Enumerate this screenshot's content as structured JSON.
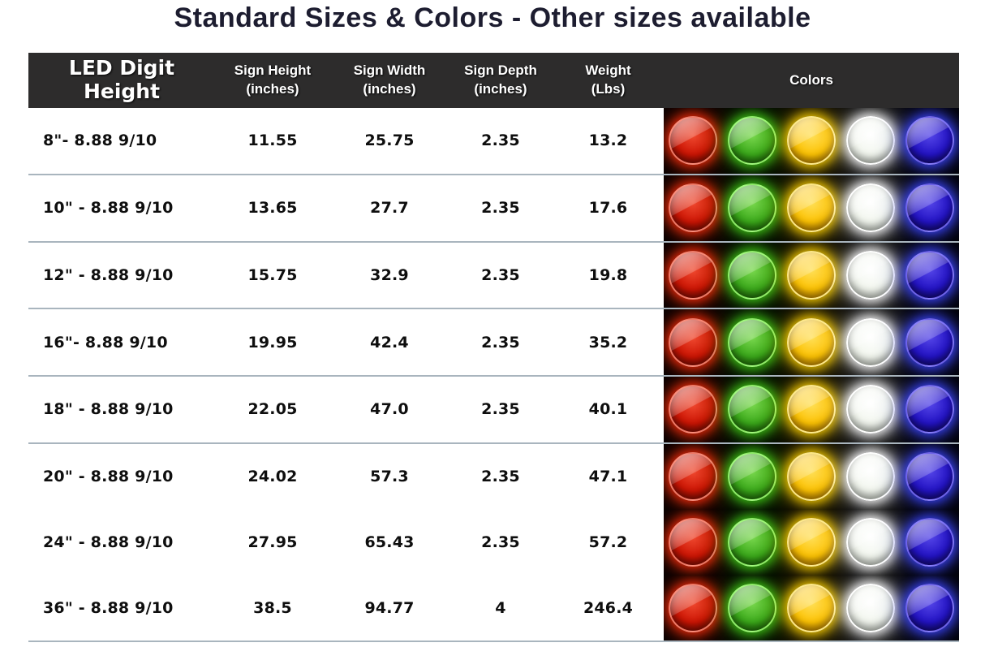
{
  "title": "Standard Sizes & Colors - Other sizes available",
  "table": {
    "headers": [
      {
        "line1": "LED Digit Height",
        "line2": ""
      },
      {
        "line1": "Sign Height",
        "line2": "(inches)"
      },
      {
        "line1": "Sign Width",
        "line2": "(inches)"
      },
      {
        "line1": "Sign Depth",
        "line2": "(inches)"
      },
      {
        "line1": "Weight",
        "line2": "(Lbs)"
      },
      {
        "line1": "Colors",
        "line2": ""
      }
    ],
    "rows": [
      {
        "digit_height": "8\"- 8.88 9/10",
        "sign_height": "11.55",
        "sign_width": "25.75",
        "sign_depth": "2.35",
        "weight": "13.2",
        "colors": [
          "red",
          "green",
          "yellow",
          "white",
          "blue"
        ]
      },
      {
        "digit_height": "10\" - 8.88 9/10",
        "sign_height": "13.65",
        "sign_width": "27.7",
        "sign_depth": "2.35",
        "weight": "17.6",
        "colors": [
          "red",
          "green",
          "yellow",
          "white",
          "blue"
        ]
      },
      {
        "digit_height": "12\" - 8.88 9/10",
        "sign_height": "15.75",
        "sign_width": "32.9",
        "sign_depth": "2.35",
        "weight": "19.8",
        "colors": [
          "red",
          "green",
          "yellow",
          "white",
          "blue"
        ]
      },
      {
        "digit_height": "16\"- 8.88 9/10",
        "sign_height": "19.95",
        "sign_width": "42.4",
        "sign_depth": "2.35",
        "weight": "35.2",
        "colors": [
          "red",
          "green",
          "yellow",
          "white",
          "blue"
        ]
      },
      {
        "digit_height": "18\" - 8.88 9/10",
        "sign_height": "22.05",
        "sign_width": "47.0",
        "sign_depth": "2.35",
        "weight": "40.1",
        "colors": [
          "red",
          "green",
          "yellow",
          "white",
          "blue"
        ]
      },
      {
        "digit_height": "20\" - 8.88 9/10",
        "sign_height": "24.02",
        "sign_width": "57.3",
        "sign_depth": "2.35",
        "weight": "47.1",
        "colors": [
          "red",
          "green",
          "yellow",
          "white",
          "blue"
        ]
      },
      {
        "digit_height": "24\" - 8.88 9/10",
        "sign_height": "27.95",
        "sign_width": "65.43",
        "sign_depth": "2.35",
        "weight": "57.2",
        "colors": [
          "red",
          "green",
          "yellow",
          "white",
          "blue"
        ]
      },
      {
        "digit_height": "36\" - 8.88 9/10",
        "sign_height": "38.5",
        "sign_width": "94.77",
        "sign_depth": "4",
        "weight": "246.4",
        "colors": [
          "red",
          "green",
          "yellow",
          "white",
          "blue"
        ]
      }
    ]
  },
  "led_colors": [
    {
      "name": "red",
      "hex": "#cc1504"
    },
    {
      "name": "green",
      "hex": "#3aa81a"
    },
    {
      "name": "yellow",
      "hex": "#fcc203"
    },
    {
      "name": "white",
      "hex": "#f2f6ee"
    },
    {
      "name": "blue",
      "hex": "#2313c4"
    }
  ],
  "style_colors": {
    "header_bg": "#2d2c2c",
    "separator": "#a9b5be",
    "colors_panel_bg": "#000000",
    "title_color": "#1d1d30"
  }
}
